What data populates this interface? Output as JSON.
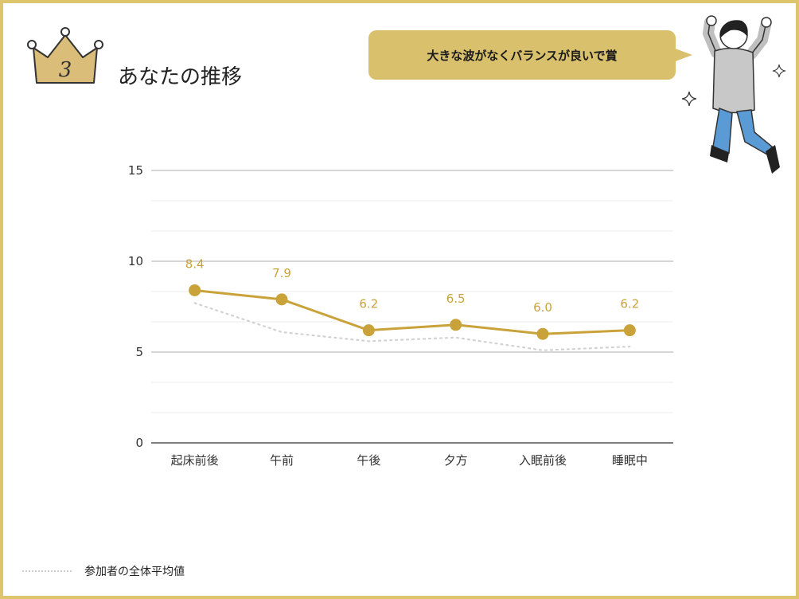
{
  "header": {
    "rank_number": "3",
    "title": "あなたの推移"
  },
  "speech_bubble": {
    "text": "大きな波がなくバランスが良いで賞"
  },
  "colors": {
    "accent": "#c9a33a",
    "frame": "#dcc56c",
    "average_line": "#d2d2d2"
  },
  "icons": {
    "crown": "crown-icon",
    "person": "jumping-person-illustration",
    "sparkles": "sparkle-icon"
  },
  "legend": {
    "average_label": "参加者の全体平均値"
  },
  "chart_data": {
    "type": "line",
    "categories": [
      "起床前後",
      "午前",
      "午後",
      "夕方",
      "入眠前後",
      "睡眠中"
    ],
    "series": [
      {
        "name": "",
        "values": [
          8.4,
          7.9,
          6.2,
          6.5,
          6.0,
          6.2
        ],
        "value_labels": [
          "8.4",
          "7.9",
          "6.2",
          "6.5",
          "6.0",
          "6.2"
        ],
        "color": "#c9a33a",
        "style": "solid-with-markers"
      },
      {
        "name": "参加者の全体平均値",
        "values": [
          7.7,
          6.1,
          5.6,
          5.8,
          5.1,
          5.3
        ],
        "color": "#d2d2d2",
        "style": "dotted"
      }
    ],
    "y_ticks": [
      "0",
      "5",
      "10",
      "15"
    ],
    "ylim": [
      0,
      15
    ],
    "grid": true,
    "legend_position": "bottom-left"
  }
}
